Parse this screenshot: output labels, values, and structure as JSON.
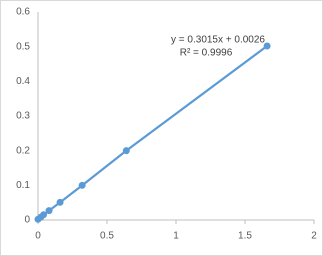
{
  "chart_data": {
    "type": "scatter",
    "annotations": [
      "y = 0.3015x + 0.0026",
      "R² = 0.9996"
    ],
    "x": [
      0,
      0.02,
      0.04,
      0.08,
      0.16,
      0.32,
      0.64,
      1.66
    ],
    "series": [
      {
        "color": "#5b9bd5",
        "values": [
          0.002,
          0.008,
          0.015,
          0.027,
          0.051,
          0.1,
          0.2,
          0.502
        ]
      }
    ],
    "xlim": [
      0,
      2
    ],
    "xticks": [
      0,
      0.5,
      1,
      1.5,
      2
    ],
    "ylim": [
      0,
      0.6
    ],
    "yticks": [
      0,
      0.1,
      0.2,
      0.3,
      0.4,
      0.5,
      0.6
    ],
    "grid": false
  }
}
